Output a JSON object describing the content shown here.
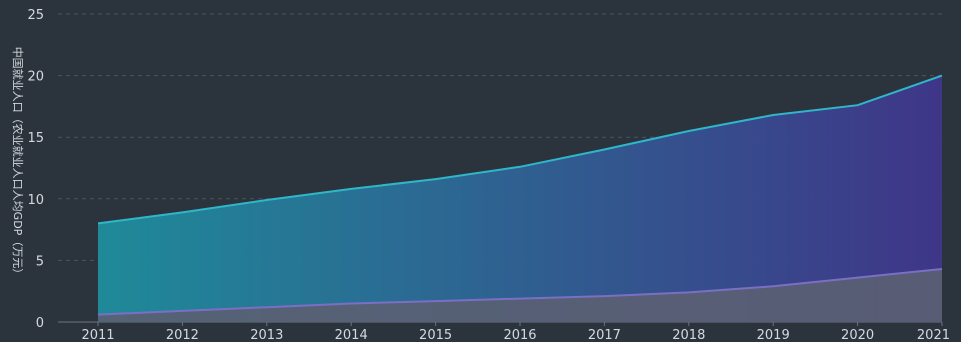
{
  "chart_data": {
    "type": "area",
    "ylabel": "中国就业人口（农业就业人口人均GDP（万元）",
    "x": [
      "2011",
      "2012",
      "2013",
      "2014",
      "2015",
      "2016",
      "2017",
      "2018",
      "2019",
      "2020",
      "2021"
    ],
    "ylim": [
      0,
      25
    ],
    "yticks": [
      0,
      5,
      10,
      15,
      20,
      25
    ],
    "grid": true,
    "series": [
      {
        "values": [
          8.0,
          8.9,
          9.9,
          10.8,
          11.6,
          12.6,
          14.0,
          15.5,
          16.8,
          17.6,
          20.0
        ],
        "gradient": [
          "#1e8e9e",
          "#40368c"
        ],
        "line_color": "#2fb7c9"
      },
      {
        "values": [
          0.6,
          0.9,
          1.2,
          1.5,
          1.7,
          1.9,
          2.1,
          2.4,
          2.9,
          3.6,
          4.3
        ],
        "fill_color": "#5a5f73",
        "line_color": "#7a6fc4"
      }
    ]
  }
}
